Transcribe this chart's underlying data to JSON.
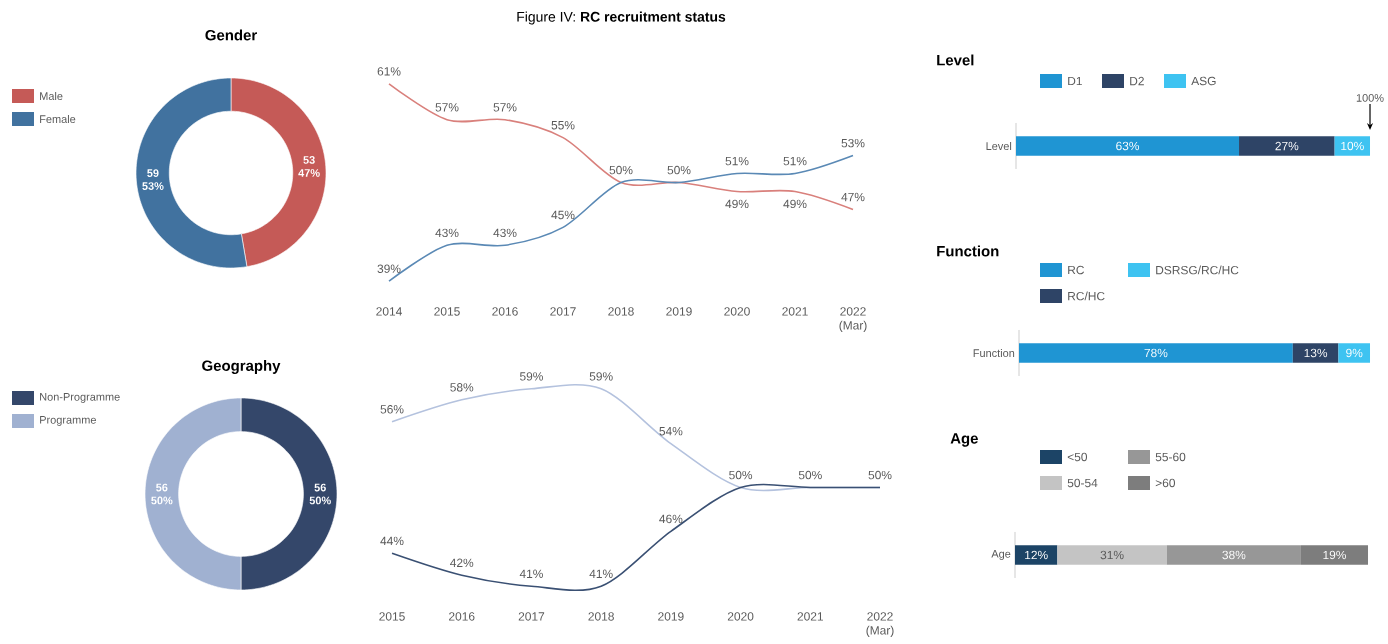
{
  "chart_data": [
    {
      "type": "donut",
      "title": "Gender",
      "categories": [
        "Male",
        "Female"
      ],
      "values": [
        53,
        59
      ],
      "colors": [
        "#c55a57",
        "#41729f"
      ],
      "value_labels": [
        "53 47%",
        "59 53%"
      ],
      "legend": "left"
    },
    {
      "type": "line",
      "title": "Figure IV: **RC recruitment status**",
      "categories": [
        "2014",
        "2015",
        "2016",
        "2017",
        "2018",
        "2019",
        "2020",
        "2021",
        "2022 (Mar)"
      ],
      "series": [
        {
          "color": "#d9807c",
          "values": [
            61,
            57,
            57,
            55,
            50,
            50,
            49,
            49,
            47
          ],
          "value_labels": [
            "61%",
            "57%",
            "57%",
            "55%",
            "50%",
            null,
            "49%",
            "49%",
            "47%"
          ]
        },
        {
          "color": "#5a89b5",
          "values": [
            39,
            43,
            43,
            45,
            50,
            50,
            51,
            51,
            53
          ],
          "value_labels": [
            "39%",
            "43%",
            "43%",
            "45%",
            null,
            "50%",
            "51%",
            "51%",
            "53%"
          ]
        }
      ]
    },
    {
      "type": "bar",
      "title": "Level",
      "orientation": "horizontal",
      "stacked": true,
      "legend": "top",
      "categories": [
        "Level"
      ],
      "series": [
        {
          "name": "D1",
          "color": "#1f95d3",
          "values": [
            63
          ],
          "value_labels": [
            "63%"
          ]
        },
        {
          "name": "D2",
          "color": "#2e4466",
          "values": [
            27
          ],
          "value_labels": [
            "27%"
          ]
        },
        {
          "name": "ASG",
          "color": "#3ec3f1",
          "values": [
            10
          ],
          "value_labels": [
            "10%"
          ]
        }
      ],
      "annotations": [
        "100%"
      ]
    },
    {
      "type": "bar",
      "title": "Function",
      "orientation": "horizontal",
      "stacked": true,
      "legend": "top",
      "categories": [
        "Function"
      ],
      "series": [
        {
          "name": "RC",
          "color": "#1f95d3",
          "values": [
            78
          ],
          "value_labels": [
            "78%"
          ]
        },
        {
          "name": "RC/HC",
          "color": "#2e4466",
          "values": [
            13
          ],
          "value_labels": [
            "13%"
          ]
        },
        {
          "name": "DSRSG/RC/HC",
          "color": "#3ec3f1",
          "values": [
            9
          ],
          "value_labels": [
            "9%"
          ]
        }
      ]
    },
    {
      "type": "donut",
      "title": "Geography",
      "categories": [
        "Non-Programme",
        "Programme"
      ],
      "values": [
        56,
        56
      ],
      "colors": [
        "#34476a",
        "#a0b1d1"
      ],
      "value_labels": [
        "56 50%",
        "56 50%"
      ],
      "legend": "left"
    },
    {
      "type": "line",
      "categories": [
        "2015",
        "2016",
        "2017",
        "2018",
        "2019",
        "2020",
        "2021",
        "2022 (Mar)"
      ],
      "series": [
        {
          "color": "#b4c2de",
          "values": [
            56,
            58,
            59,
            59,
            54,
            50,
            50,
            50
          ],
          "value_labels": [
            "56%",
            "58%",
            "59%",
            "59%",
            "54%",
            null,
            "50%",
            "50%"
          ]
        },
        {
          "color": "#3a5073",
          "values": [
            44,
            42,
            41,
            41,
            46,
            50,
            50,
            50
          ],
          "value_labels": [
            "44%",
            "42%",
            "41%",
            "41%",
            "46%",
            "50%",
            null,
            null
          ]
        }
      ]
    },
    {
      "type": "bar",
      "title": "Age",
      "orientation": "horizontal",
      "stacked": true,
      "legend": "top",
      "categories": [
        "Age"
      ],
      "series": [
        {
          "name": "<50",
          "color": "#1c4466",
          "values": [
            12
          ],
          "value_labels": [
            "12%"
          ]
        },
        {
          "name": "50-54",
          "color": "#c4c4c4",
          "values": [
            31
          ],
          "value_labels": [
            "31%"
          ]
        },
        {
          "name": "55-60",
          "color": "#979797",
          "values": [
            38
          ],
          "value_labels": [
            "38%"
          ]
        },
        {
          "name": ">60",
          "color": "#7d7d7d",
          "values": [
            19
          ],
          "value_labels": [
            "19%"
          ]
        }
      ]
    }
  ]
}
